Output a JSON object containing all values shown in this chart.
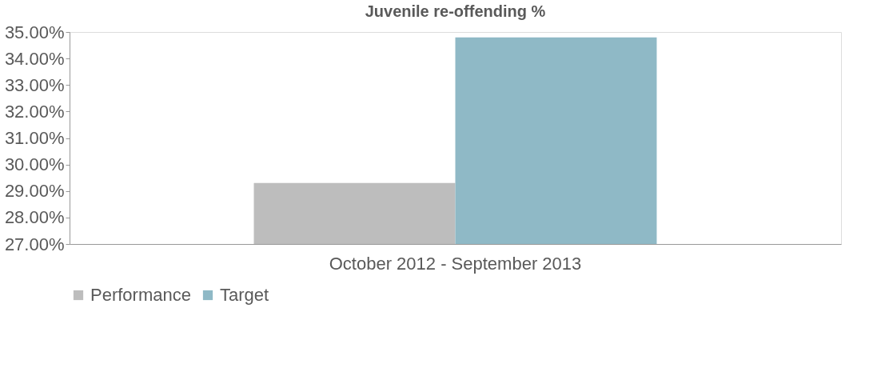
{
  "chart_data": {
    "type": "bar",
    "title": "Juvenile re-offending %",
    "categories": [
      "October 2012 - September 2013"
    ],
    "series": [
      {
        "name": "Performance",
        "color": "#bdbdbd",
        "values": [
          29.3
        ]
      },
      {
        "name": "Target",
        "color": "#8fb9c6",
        "values": [
          34.8
        ]
      }
    ],
    "ylim": [
      27,
      35
    ],
    "yticks": [
      {
        "value": 27,
        "label": "27.00%"
      },
      {
        "value": 28,
        "label": "28.00%"
      },
      {
        "value": 29,
        "label": "29.00%"
      },
      {
        "value": 30,
        "label": "30.00%"
      },
      {
        "value": 31,
        "label": "31.00%"
      },
      {
        "value": 32,
        "label": "32.00%"
      },
      {
        "value": 33,
        "label": "33.00%"
      },
      {
        "value": 34,
        "label": "34.00%"
      },
      {
        "value": 35,
        "label": "35.00%"
      }
    ],
    "grid": false,
    "legend": "bottom"
  }
}
